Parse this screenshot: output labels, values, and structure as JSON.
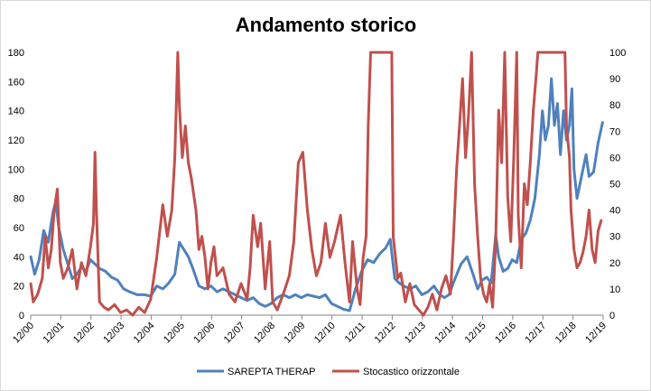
{
  "chart_data": {
    "type": "line",
    "title": "Andamento storico",
    "categories": [
      "12/00",
      "12/01",
      "12/02",
      "12/03",
      "12/04",
      "12/05",
      "12/06",
      "12/07",
      "12/08",
      "12/09",
      "12/10",
      "12/11",
      "12/12",
      "12/13",
      "12/14",
      "12/15",
      "12/16",
      "12/17",
      "12/18",
      "12/19"
    ],
    "x_range": [
      2000.917,
      2019.917
    ],
    "y_left": {
      "min": 0,
      "max": 180,
      "step": 20,
      "ticks": [
        "0",
        "20",
        "40",
        "60",
        "80",
        "100",
        "120",
        "140",
        "160",
        "180"
      ]
    },
    "y_right": {
      "min": 0,
      "max": 100,
      "step": 10,
      "ticks": [
        "0",
        "10",
        "20",
        "30",
        "40",
        "50",
        "60",
        "70",
        "80",
        "90",
        "100"
      ]
    },
    "grid": false,
    "legend_position": "bottom",
    "series": [
      {
        "name": "SAREPTA THERAP",
        "axis": "left",
        "color": "#4f81bd",
        "points": [
          [
            2000.92,
            40
          ],
          [
            2001.05,
            28
          ],
          [
            2001.2,
            38
          ],
          [
            2001.35,
            58
          ],
          [
            2001.5,
            50
          ],
          [
            2001.65,
            70
          ],
          [
            2001.75,
            78
          ],
          [
            2001.85,
            60
          ],
          [
            2002.0,
            45
          ],
          [
            2002.15,
            35
          ],
          [
            2002.3,
            25
          ],
          [
            2002.45,
            28
          ],
          [
            2002.6,
            33
          ],
          [
            2002.75,
            30
          ],
          [
            2002.9,
            38
          ],
          [
            2003.05,
            35
          ],
          [
            2003.2,
            32
          ],
          [
            2003.4,
            30
          ],
          [
            2003.6,
            26
          ],
          [
            2003.8,
            24
          ],
          [
            2004.0,
            18
          ],
          [
            2004.2,
            16
          ],
          [
            2004.45,
            14
          ],
          [
            2004.7,
            14
          ],
          [
            2004.9,
            13
          ],
          [
            2005.1,
            20
          ],
          [
            2005.3,
            18
          ],
          [
            2005.5,
            22
          ],
          [
            2005.7,
            28
          ],
          [
            2005.85,
            50
          ],
          [
            2006.0,
            45
          ],
          [
            2006.15,
            40
          ],
          [
            2006.3,
            32
          ],
          [
            2006.5,
            20
          ],
          [
            2006.7,
            18
          ],
          [
            2006.9,
            20
          ],
          [
            2007.1,
            16
          ],
          [
            2007.3,
            18
          ],
          [
            2007.5,
            16
          ],
          [
            2007.7,
            14
          ],
          [
            2007.9,
            12
          ],
          [
            2008.1,
            10
          ],
          [
            2008.3,
            12
          ],
          [
            2008.5,
            8
          ],
          [
            2008.7,
            6
          ],
          [
            2008.9,
            8
          ],
          [
            2009.1,
            12
          ],
          [
            2009.3,
            14
          ],
          [
            2009.5,
            12
          ],
          [
            2009.7,
            14
          ],
          [
            2009.9,
            12
          ],
          [
            2010.1,
            14
          ],
          [
            2010.3,
            13
          ],
          [
            2010.5,
            12
          ],
          [
            2010.7,
            14
          ],
          [
            2010.9,
            8
          ],
          [
            2011.1,
            6
          ],
          [
            2011.3,
            4
          ],
          [
            2011.5,
            3
          ],
          [
            2011.7,
            18
          ],
          [
            2011.9,
            30
          ],
          [
            2012.1,
            38
          ],
          [
            2012.3,
            36
          ],
          [
            2012.5,
            42
          ],
          [
            2012.7,
            46
          ],
          [
            2012.85,
            52
          ],
          [
            2013.0,
            25
          ],
          [
            2013.15,
            22
          ],
          [
            2013.3,
            20
          ],
          [
            2013.5,
            18
          ],
          [
            2013.7,
            20
          ],
          [
            2013.9,
            14
          ],
          [
            2014.1,
            16
          ],
          [
            2014.3,
            20
          ],
          [
            2014.5,
            14
          ],
          [
            2014.65,
            12
          ],
          [
            2014.8,
            14
          ],
          [
            2015.0,
            25
          ],
          [
            2015.2,
            35
          ],
          [
            2015.4,
            40
          ],
          [
            2015.6,
            28
          ],
          [
            2015.75,
            18
          ],
          [
            2015.9,
            24
          ],
          [
            2016.05,
            26
          ],
          [
            2016.2,
            22
          ],
          [
            2016.35,
            55
          ],
          [
            2016.45,
            40
          ],
          [
            2016.6,
            30
          ],
          [
            2016.75,
            32
          ],
          [
            2016.9,
            38
          ],
          [
            2017.05,
            36
          ],
          [
            2017.2,
            52
          ],
          [
            2017.35,
            56
          ],
          [
            2017.5,
            65
          ],
          [
            2017.65,
            80
          ],
          [
            2017.8,
            110
          ],
          [
            2017.9,
            140
          ],
          [
            2018.0,
            120
          ],
          [
            2018.1,
            130
          ],
          [
            2018.2,
            162
          ],
          [
            2018.3,
            130
          ],
          [
            2018.4,
            145
          ],
          [
            2018.5,
            110
          ],
          [
            2018.6,
            140
          ],
          [
            2018.7,
            120
          ],
          [
            2018.8,
            130
          ],
          [
            2018.88,
            155
          ],
          [
            2018.95,
            100
          ],
          [
            2019.05,
            80
          ],
          [
            2019.15,
            90
          ],
          [
            2019.25,
            100
          ],
          [
            2019.35,
            110
          ],
          [
            2019.45,
            95
          ],
          [
            2019.6,
            98
          ],
          [
            2019.75,
            118
          ],
          [
            2019.9,
            132
          ]
        ]
      },
      {
        "name": "Stocastico orizzontale",
        "axis": "right",
        "color": "#c0504d",
        "points": [
          [
            2000.92,
            12
          ],
          [
            2001.0,
            5
          ],
          [
            2001.15,
            8
          ],
          [
            2001.3,
            14
          ],
          [
            2001.4,
            30
          ],
          [
            2001.5,
            18
          ],
          [
            2001.6,
            25
          ],
          [
            2001.7,
            40
          ],
          [
            2001.8,
            48
          ],
          [
            2001.9,
            20
          ],
          [
            2002.0,
            14
          ],
          [
            2002.15,
            18
          ],
          [
            2002.3,
            25
          ],
          [
            2002.45,
            10
          ],
          [
            2002.6,
            20
          ],
          [
            2002.75,
            15
          ],
          [
            2002.9,
            26
          ],
          [
            2003.0,
            35
          ],
          [
            2003.05,
            62
          ],
          [
            2003.1,
            40
          ],
          [
            2003.2,
            5
          ],
          [
            2003.35,
            3
          ],
          [
            2003.5,
            2
          ],
          [
            2003.7,
            4
          ],
          [
            2003.9,
            1
          ],
          [
            2004.1,
            2
          ],
          [
            2004.3,
            0
          ],
          [
            2004.5,
            3
          ],
          [
            2004.7,
            1
          ],
          [
            2004.9,
            6
          ],
          [
            2005.1,
            22
          ],
          [
            2005.3,
            42
          ],
          [
            2005.45,
            30
          ],
          [
            2005.6,
            40
          ],
          [
            2005.7,
            60
          ],
          [
            2005.8,
            100
          ],
          [
            2005.85,
            80
          ],
          [
            2005.95,
            60
          ],
          [
            2006.05,
            72
          ],
          [
            2006.15,
            58
          ],
          [
            2006.25,
            52
          ],
          [
            2006.4,
            40
          ],
          [
            2006.5,
            25
          ],
          [
            2006.6,
            30
          ],
          [
            2006.7,
            22
          ],
          [
            2006.8,
            10
          ],
          [
            2006.9,
            20
          ],
          [
            2007.0,
            26
          ],
          [
            2007.1,
            15
          ],
          [
            2007.3,
            18
          ],
          [
            2007.5,
            8
          ],
          [
            2007.7,
            5
          ],
          [
            2007.9,
            12
          ],
          [
            2008.1,
            6
          ],
          [
            2008.2,
            18
          ],
          [
            2008.3,
            38
          ],
          [
            2008.45,
            26
          ],
          [
            2008.55,
            35
          ],
          [
            2008.7,
            10
          ],
          [
            2008.85,
            28
          ],
          [
            2008.95,
            5
          ],
          [
            2009.1,
            2
          ],
          [
            2009.3,
            8
          ],
          [
            2009.5,
            15
          ],
          [
            2009.65,
            28
          ],
          [
            2009.8,
            58
          ],
          [
            2009.95,
            62
          ],
          [
            2010.1,
            40
          ],
          [
            2010.25,
            25
          ],
          [
            2010.4,
            15
          ],
          [
            2010.55,
            20
          ],
          [
            2010.7,
            35
          ],
          [
            2010.85,
            22
          ],
          [
            2011.0,
            28
          ],
          [
            2011.2,
            38
          ],
          [
            2011.35,
            20
          ],
          [
            2011.5,
            5
          ],
          [
            2011.6,
            28
          ],
          [
            2011.75,
            10
          ],
          [
            2011.85,
            4
          ],
          [
            2011.95,
            22
          ],
          [
            2012.05,
            30
          ],
          [
            2012.12,
            72
          ],
          [
            2012.2,
            100
          ],
          [
            2012.4,
            100
          ],
          [
            2012.6,
            100
          ],
          [
            2012.8,
            100
          ],
          [
            2012.9,
            100
          ],
          [
            2012.95,
            30
          ],
          [
            2013.1,
            14
          ],
          [
            2013.2,
            16
          ],
          [
            2013.35,
            5
          ],
          [
            2013.5,
            12
          ],
          [
            2013.65,
            4
          ],
          [
            2013.8,
            2
          ],
          [
            2013.95,
            0
          ],
          [
            2014.1,
            3
          ],
          [
            2014.25,
            8
          ],
          [
            2014.4,
            2
          ],
          [
            2014.55,
            10
          ],
          [
            2014.7,
            15
          ],
          [
            2014.85,
            8
          ],
          [
            2014.95,
            30
          ],
          [
            2015.05,
            55
          ],
          [
            2015.15,
            72
          ],
          [
            2015.25,
            90
          ],
          [
            2015.35,
            60
          ],
          [
            2015.45,
            76
          ],
          [
            2015.55,
            100
          ],
          [
            2015.65,
            50
          ],
          [
            2015.75,
            30
          ],
          [
            2015.85,
            14
          ],
          [
            2015.95,
            8
          ],
          [
            2016.05,
            5
          ],
          [
            2016.15,
            12
          ],
          [
            2016.25,
            3
          ],
          [
            2016.35,
            28
          ],
          [
            2016.45,
            78
          ],
          [
            2016.55,
            58
          ],
          [
            2016.65,
            100
          ],
          [
            2016.75,
            45
          ],
          [
            2016.85,
            28
          ],
          [
            2016.95,
            60
          ],
          [
            2017.05,
            100
          ],
          [
            2017.1,
            38
          ],
          [
            2017.2,
            18
          ],
          [
            2017.3,
            50
          ],
          [
            2017.4,
            42
          ],
          [
            2017.5,
            58
          ],
          [
            2017.6,
            78
          ],
          [
            2017.7,
            92
          ],
          [
            2017.75,
            100
          ],
          [
            2017.9,
            100
          ],
          [
            2018.1,
            100
          ],
          [
            2018.3,
            100
          ],
          [
            2018.5,
            100
          ],
          [
            2018.65,
            100
          ],
          [
            2018.7,
            72
          ],
          [
            2018.8,
            60
          ],
          [
            2018.85,
            40
          ],
          [
            2018.95,
            25
          ],
          [
            2019.05,
            18
          ],
          [
            2019.15,
            20
          ],
          [
            2019.25,
            24
          ],
          [
            2019.35,
            30
          ],
          [
            2019.45,
            40
          ],
          [
            2019.55,
            25
          ],
          [
            2019.65,
            20
          ],
          [
            2019.75,
            32
          ],
          [
            2019.85,
            36
          ]
        ]
      }
    ]
  }
}
